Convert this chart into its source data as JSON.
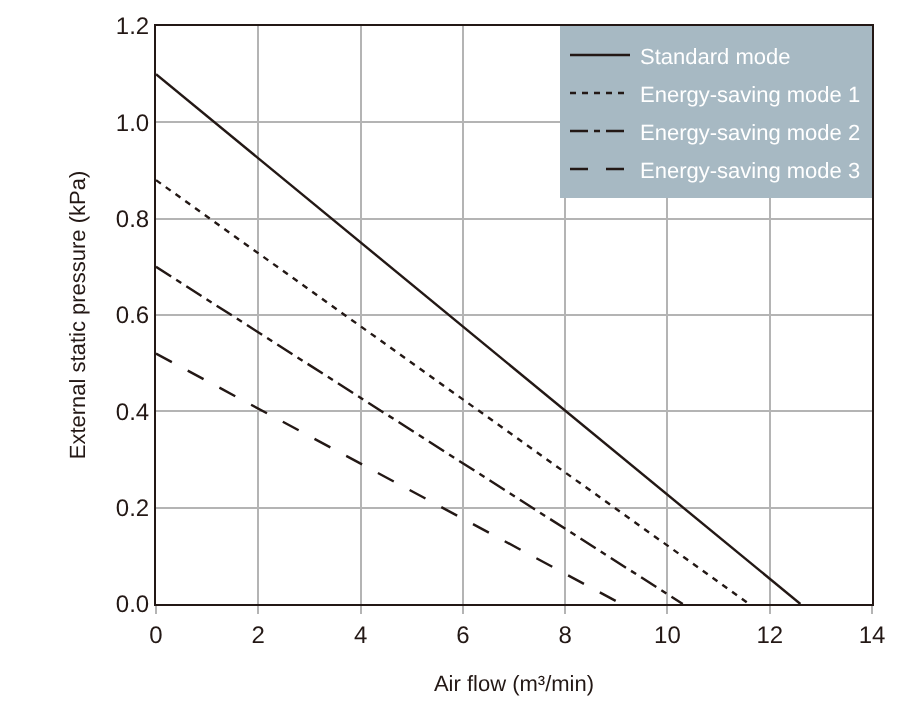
{
  "chart_data": {
    "type": "line",
    "xlabel": "Air flow (m³/min)",
    "ylabel": "External static pressure (kPa)",
    "xlim": [
      0,
      14
    ],
    "xticks": [
      0,
      2,
      4,
      6,
      8,
      10,
      12,
      14
    ],
    "ylim": [
      0,
      1.2
    ],
    "yticks": [
      {
        "value": 0,
        "label": "0.0"
      },
      {
        "value": 0.2,
        "label": "0.2"
      },
      {
        "value": 0.4,
        "label": "0.4"
      },
      {
        "value": 0.6,
        "label": "0.6"
      },
      {
        "value": 0.8,
        "label": "0.8"
      },
      {
        "value": 1,
        "label": "1.0"
      },
      {
        "value": 1.2,
        "label": "1.2"
      }
    ],
    "grid": true,
    "legend": "top right",
    "marker": "none",
    "series": [
      {
        "name": "Standard mode",
        "color": "#231815",
        "line_style": "solid",
        "x": [
          0,
          12.6
        ],
        "values": [
          1.1,
          0
        ]
      },
      {
        "name": "Energy-saving mode 1",
        "color": "#231815",
        "line_style": "dotted",
        "x": [
          0,
          11.6
        ],
        "values": [
          0.88,
          0
        ]
      },
      {
        "name": "Energy-saving mode 2",
        "color": "#231815",
        "line_style": "dashdot",
        "x": [
          0,
          10.3
        ],
        "values": [
          0.7,
          0
        ]
      },
      {
        "name": "Energy-saving mode 3",
        "color": "#231815",
        "line_style": "dashed",
        "x": [
          0,
          9.1
        ],
        "values": [
          0.52,
          0
        ]
      }
    ]
  }
}
